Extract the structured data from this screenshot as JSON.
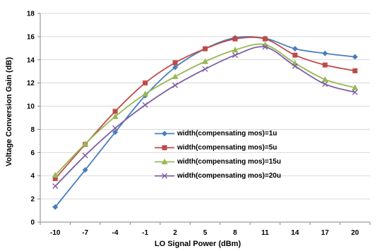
{
  "chart_data": {
    "type": "line",
    "xlabel": "LO Signal Power (dBm)",
    "ylabel": "Voltage Conversion Gain (dB)",
    "categories": [
      "-10",
      "-7",
      "-4",
      "-1",
      "2",
      "5",
      "8",
      "11",
      "14",
      "17",
      "20"
    ],
    "ylim": [
      0,
      18
    ],
    "yticks": [
      "0",
      "2",
      "4",
      "6",
      "8",
      "10",
      "12",
      "14",
      "16",
      "18"
    ],
    "grid": true,
    "legend_position": "center",
    "series": [
      {
        "name": "width(compensating mos)=1u",
        "color": "#4a7ebb",
        "marker": "diamond",
        "values": [
          1.3,
          4.5,
          7.75,
          10.9,
          13.35,
          14.95,
          15.9,
          15.85,
          14.95,
          14.55,
          14.25
        ]
      },
      {
        "name": "width(compensating mos)=5u",
        "color": "#be4b48",
        "marker": "square",
        "values": [
          3.75,
          6.7,
          9.55,
          12.0,
          13.75,
          14.95,
          15.8,
          15.8,
          14.4,
          13.55,
          13.05
        ]
      },
      {
        "name": "width(compensating mos)=15u",
        "color": "#98b954",
        "marker": "triangle",
        "values": [
          4.05,
          6.75,
          9.1,
          11.05,
          12.55,
          13.85,
          14.85,
          15.3,
          13.7,
          12.3,
          11.6
        ]
      },
      {
        "name": "width(compensating mos)=20u",
        "color": "#7d60a0",
        "marker": "x",
        "values": [
          3.1,
          5.75,
          8.1,
          10.1,
          11.8,
          13.2,
          14.4,
          15.1,
          13.45,
          11.9,
          11.2
        ]
      }
    ]
  }
}
